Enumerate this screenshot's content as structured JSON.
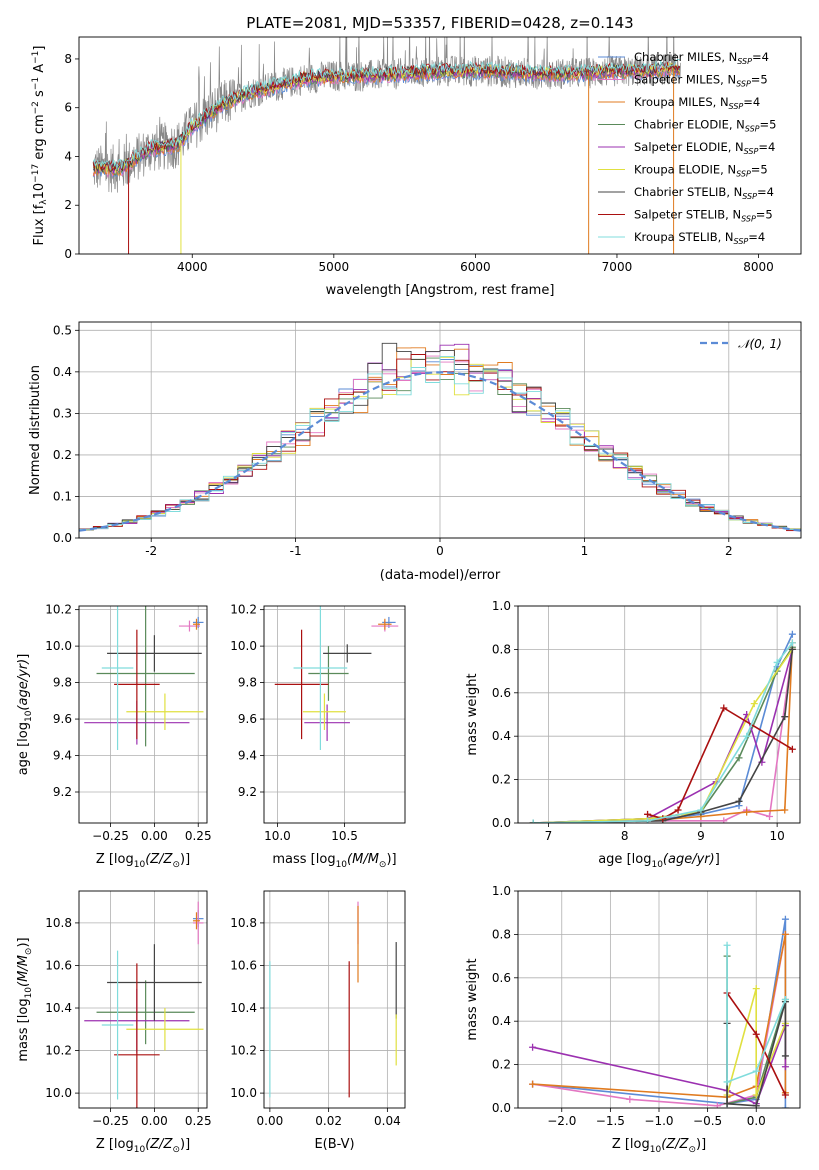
{
  "figure": {
    "title": "PLATE=2081, MJD=53357, FIBERID=0428, z=0.143"
  },
  "colors": {
    "Chabrier MILES": "#5b8bd6",
    "Salpeter MILES": "#e377c2",
    "Kroupa MILES": "#e07b20",
    "Chabrier ELODIE": "#5a8a5a",
    "Salpeter ELODIE": "#9b30b0",
    "Kroupa ELODIE": "#e0e040",
    "Chabrier STELIB": "#444444",
    "Salpeter STELIB": "#aa1010",
    "Kroupa STELIB": "#80dcdc",
    "gaussian": "#5b8bd6",
    "data": "#888888"
  },
  "chart_data": [
    {
      "id": "spectrum",
      "type": "line",
      "xlabel": "wavelength [Angstrom, rest frame]",
      "ylabel_parts": [
        "Flux [f",
        "λ",
        "10",
        "−17",
        " erg cm",
        "−2",
        " s",
        "−1",
        " A",
        "−1",
        "]"
      ],
      "xlim": [
        3200,
        8300
      ],
      "ylim": [
        0,
        8.9
      ],
      "xticks": [
        4000,
        5000,
        6000,
        7000,
        8000
      ],
      "yticks": [
        0,
        2,
        4,
        6,
        8
      ],
      "grid": false,
      "legend_position": "right",
      "legend": [
        {
          "model": "Chabrier MILES",
          "n": "4"
        },
        {
          "model": "Salpeter MILES",
          "n": "5"
        },
        {
          "model": "Kroupa MILES",
          "n": "4"
        },
        {
          "model": "Chabrier ELODIE",
          "n": "5"
        },
        {
          "model": "Salpeter ELODIE",
          "n": "4"
        },
        {
          "model": "Kroupa ELODIE",
          "n": "5"
        },
        {
          "model": "Chabrier STELIB",
          "n": "4"
        },
        {
          "model": "Salpeter STELIB",
          "n": "5"
        },
        {
          "model": "Kroupa STELIB",
          "n": "4"
        }
      ],
      "continuum": {
        "x": [
          3300,
          3500,
          3700,
          3900,
          4000,
          4200,
          4400,
          4600,
          4800,
          5000,
          5200,
          5500,
          5800,
          6100,
          6400,
          6700,
          7000,
          7200,
          7400
        ],
        "y": [
          3.5,
          3.5,
          4.3,
          4.5,
          5.2,
          6.1,
          6.6,
          6.9,
          7.2,
          7.3,
          7.3,
          7.4,
          7.5,
          7.5,
          7.4,
          7.4,
          7.5,
          7.5,
          7.6
        ]
      },
      "spikes_down": [
        3550,
        3920,
        6800,
        7400
      ]
    },
    {
      "id": "residuals",
      "type": "bar",
      "xlabel": "(data-model)/error",
      "ylabel": "Normed distribution",
      "xlim": [
        -2.5,
        2.5
      ],
      "ylim": [
        0,
        0.52
      ],
      "xticks": [
        -2,
        -1,
        0,
        1,
        2
      ],
      "yticks": [
        0.0,
        0.1,
        0.2,
        0.3,
        0.4,
        0.5
      ],
      "grid": true,
      "legend_position": "top-right",
      "legend_label": "𝒩(0, 1)",
      "bin_edges_start": -2.5,
      "bin_width": 0.1,
      "series_peak": [
        0.4,
        0.42,
        0.46,
        0.41,
        0.45,
        0.39,
        0.49,
        0.44,
        0.41
      ]
    },
    {
      "id": "age-vs-Z",
      "type": "scatter",
      "xlabel": "Z [log",
      "ylabel": "age  [log",
      "xlim": [
        -0.43,
        0.3
      ],
      "ylim": [
        9.03,
        10.22
      ],
      "xticks": [
        -0.25,
        0.0,
        0.25
      ],
      "xtick_labels": [
        "−0.25",
        "0.00",
        "0.25"
      ],
      "yticks": [
        9.2,
        9.4,
        9.6,
        9.8,
        10.0,
        10.2
      ],
      "grid": true,
      "points": [
        {
          "model": "Chabrier MILES",
          "x": 0.25,
          "y": 10.13,
          "xerr": 0.03,
          "yerr": 0.03
        },
        {
          "model": "Salpeter MILES",
          "x": 0.2,
          "y": 10.11,
          "xerr": 0.06,
          "yerr": 0.03
        },
        {
          "model": "Kroupa MILES",
          "x": 0.24,
          "y": 10.12,
          "xerr": 0.02,
          "yerr": 0.03
        },
        {
          "model": "Chabrier ELODIE",
          "x": -0.05,
          "y": 9.85,
          "xerr": 0.28,
          "yerr": 0.4
        },
        {
          "model": "Salpeter ELODIE",
          "x": -0.1,
          "y": 9.58,
          "xerr": 0.3,
          "yerr": 0.12
        },
        {
          "model": "Kroupa ELODIE",
          "x": 0.06,
          "y": 9.64,
          "xerr": 0.22,
          "yerr": 0.1
        },
        {
          "model": "Chabrier STELIB",
          "x": 0.0,
          "y": 9.96,
          "xerr": 0.27,
          "yerr": 0.1
        },
        {
          "model": "Salpeter STELIB",
          "x": -0.1,
          "y": 9.79,
          "xerr": 0.13,
          "yerr": 0.3
        },
        {
          "model": "Kroupa STELIB",
          "x": -0.21,
          "y": 9.88,
          "xerr": 0.09,
          "yerr": 0.45
        }
      ]
    },
    {
      "id": "age-vs-mass",
      "type": "scatter",
      "xlabel": "mass [log",
      "ylabel": "",
      "xlim": [
        9.9,
        10.95
      ],
      "ylim": [
        9.03,
        10.22
      ],
      "xticks": [
        10.0,
        10.5
      ],
      "xtick_labels": [
        "10.0",
        "10.5"
      ],
      "yticks": [
        9.2,
        9.4,
        9.6,
        9.8,
        10.0,
        10.2
      ],
      "grid": true,
      "points": [
        {
          "model": "Chabrier MILES",
          "x": 10.83,
          "y": 10.13,
          "xerr": 0.05,
          "yerr": 0.03
        },
        {
          "model": "Salpeter MILES",
          "x": 10.8,
          "y": 10.11,
          "xerr": 0.1,
          "yerr": 0.03
        },
        {
          "model": "Kroupa MILES",
          "x": 10.8,
          "y": 10.12,
          "xerr": 0.05,
          "yerr": 0.03
        },
        {
          "model": "Chabrier ELODIE",
          "x": 10.38,
          "y": 9.85,
          "xerr": 0.15,
          "yerr": 0.15
        },
        {
          "model": "Salpeter ELODIE",
          "x": 10.37,
          "y": 9.58,
          "xerr": 0.17,
          "yerr": 0.1
        },
        {
          "model": "Kroupa ELODIE",
          "x": 10.35,
          "y": 9.64,
          "xerr": 0.16,
          "yerr": 0.1
        },
        {
          "model": "Chabrier STELIB",
          "x": 10.52,
          "y": 9.96,
          "xerr": 0.18,
          "yerr": 0.05
        },
        {
          "model": "Salpeter STELIB",
          "x": 10.18,
          "y": 9.79,
          "xerr": 0.2,
          "yerr": 0.3
        },
        {
          "model": "Kroupa STELIB",
          "x": 10.32,
          "y": 9.88,
          "xerr": 0.2,
          "yerr": 0.45
        }
      ]
    },
    {
      "id": "mass-weight-vs-age",
      "type": "line",
      "xlabel": "age  [log",
      "ylabel": "mass weight",
      "xlim": [
        6.6,
        10.3
      ],
      "ylim": [
        0,
        1.0
      ],
      "xticks": [
        7,
        8,
        9,
        10
      ],
      "yticks": [
        0.0,
        0.2,
        0.4,
        0.6,
        0.8,
        1.0
      ],
      "grid": true,
      "series": [
        {
          "model": "Chabrier MILES",
          "x": [
            6.8,
            8.3,
            9.0,
            9.5,
            10.0,
            10.2
          ],
          "y": [
            0.0,
            0.01,
            0.04,
            0.08,
            0.72,
            0.87
          ]
        },
        {
          "model": "Salpeter MILES",
          "x": [
            6.8,
            8.3,
            9.3,
            9.6,
            9.9,
            10.2
          ],
          "y": [
            0.0,
            0.01,
            0.01,
            0.06,
            0.03,
            0.8
          ]
        },
        {
          "model": "Kroupa MILES",
          "x": [
            6.8,
            8.3,
            9.0,
            9.6,
            10.1,
            10.2
          ],
          "y": [
            0.0,
            0.01,
            0.03,
            0.05,
            0.06,
            0.83
          ]
        },
        {
          "model": "Chabrier ELODIE",
          "x": [
            6.8,
            8.3,
            9.0,
            9.5,
            10.0,
            10.2
          ],
          "y": [
            0.0,
            0.02,
            0.05,
            0.3,
            0.7,
            0.81
          ]
        },
        {
          "model": "Salpeter ELODIE",
          "x": [
            6.8,
            8.3,
            9.2,
            9.6,
            9.8,
            10.2
          ],
          "y": [
            0.0,
            0.02,
            0.19,
            0.5,
            0.28,
            0.8
          ]
        },
        {
          "model": "Kroupa ELODIE",
          "x": [
            6.8,
            8.3,
            9.0,
            9.7,
            10.2
          ],
          "y": [
            0.0,
            0.02,
            0.05,
            0.55,
            0.8
          ]
        },
        {
          "model": "Chabrier STELIB",
          "x": [
            6.8,
            8.5,
            9.0,
            9.5,
            10.1,
            10.2
          ],
          "y": [
            0.0,
            0.01,
            0.05,
            0.1,
            0.49,
            0.8
          ]
        },
        {
          "model": "Salpeter STELIB",
          "x": [
            8.3,
            8.5,
            8.7,
            9.3,
            10.2
          ],
          "y": [
            0.04,
            0.02,
            0.06,
            0.53,
            0.34
          ]
        },
        {
          "model": "Kroupa STELIB",
          "x": [
            6.8,
            8.3,
            9.0,
            9.6,
            10.0,
            10.2
          ],
          "y": [
            0.0,
            0.01,
            0.06,
            0.4,
            0.74,
            0.83
          ]
        }
      ]
    },
    {
      "id": "mass-vs-Z",
      "type": "scatter",
      "xlabel": "Z [log",
      "ylabel": "mass [log",
      "xlim": [
        -0.43,
        0.3
      ],
      "ylim": [
        9.93,
        10.95
      ],
      "xticks": [
        -0.25,
        0.0,
        0.25
      ],
      "xtick_labels": [
        "−0.25",
        "0.00",
        "0.25"
      ],
      "yticks": [
        10.0,
        10.2,
        10.4,
        10.6,
        10.8
      ],
      "grid": true,
      "points": [
        {
          "model": "Chabrier MILES",
          "x": 0.25,
          "y": 10.82,
          "xerr": 0.03,
          "yerr": 0.04
        },
        {
          "model": "Salpeter MILES",
          "x": 0.25,
          "y": 10.8,
          "xerr": 0.03,
          "yerr": 0.1
        },
        {
          "model": "Kroupa MILES",
          "x": 0.24,
          "y": 10.81,
          "xerr": 0.02,
          "yerr": 0.04
        },
        {
          "model": "Chabrier ELODIE",
          "x": -0.05,
          "y": 10.38,
          "xerr": 0.28,
          "yerr": 0.15
        },
        {
          "model": "Salpeter ELODIE",
          "x": -0.1,
          "y": 10.34,
          "xerr": 0.3,
          "yerr": 0.15
        },
        {
          "model": "Kroupa ELODIE",
          "x": 0.06,
          "y": 10.3,
          "xerr": 0.22,
          "yerr": 0.1
        },
        {
          "model": "Chabrier STELIB",
          "x": 0.0,
          "y": 10.52,
          "xerr": 0.27,
          "yerr": 0.18
        },
        {
          "model": "Salpeter STELIB",
          "x": -0.1,
          "y": 10.18,
          "xerr": 0.13,
          "yerr": 0.43
        },
        {
          "model": "Kroupa STELIB",
          "x": -0.21,
          "y": 10.32,
          "xerr": 0.09,
          "yerr": 0.35
        }
      ]
    },
    {
      "id": "mass-vs-EBV",
      "type": "scatter",
      "xlabel": "E(B-V)",
      "ylabel": "",
      "xlim": [
        -0.002,
        0.046
      ],
      "ylim": [
        9.93,
        10.95
      ],
      "xticks": [
        0.0,
        0.02,
        0.04
      ],
      "xtick_labels": [
        "0.00",
        "0.02",
        "0.04"
      ],
      "yticks": [
        10.0,
        10.2,
        10.4,
        10.6,
        10.8
      ],
      "grid": true,
      "points": [
        {
          "model": "Kroupa STELIB",
          "x": 0.0,
          "y": 10.3,
          "xerr": 0.0,
          "yerr": 0.32
        },
        {
          "model": "Salpeter STELIB",
          "x": 0.027,
          "y": 10.3,
          "xerr": 0.0,
          "yerr": 0.32
        },
        {
          "model": "Salpeter MILES",
          "x": 0.03,
          "y": 10.8,
          "xerr": 0.0,
          "yerr": 0.1
        },
        {
          "model": "Kroupa MILES",
          "x": 0.03,
          "y": 10.7,
          "xerr": 0.0,
          "yerr": 0.18
        },
        {
          "model": "Chabrier STELIB",
          "x": 0.043,
          "y": 10.53,
          "xerr": 0.0,
          "yerr": 0.18
        },
        {
          "model": "Kroupa ELODIE",
          "x": 0.043,
          "y": 10.25,
          "xerr": 0.0,
          "yerr": 0.12
        }
      ]
    },
    {
      "id": "mass-weight-vs-Z",
      "type": "line",
      "xlabel": "Z [log",
      "ylabel": "mass weight",
      "xlim": [
        -2.45,
        0.45
      ],
      "ylim": [
        0,
        1.0
      ],
      "xticks": [
        -2.0,
        -1.5,
        -1.0,
        -0.5,
        0.0
      ],
      "xtick_labels": [
        "−2.0",
        "−1.5",
        "−1.0",
        "−0.5",
        "0.0"
      ],
      "yticks": [
        0.0,
        0.2,
        0.4,
        0.6,
        0.8,
        1.0
      ],
      "grid": true,
      "series": [
        {
          "model": "Chabrier MILES",
          "x": [
            -2.3,
            -0.3,
            0.0,
            0.3,
            0.3
          ],
          "y": [
            0.11,
            0.02,
            0.04,
            0.87,
            0.0
          ]
        },
        {
          "model": "Salpeter MILES",
          "x": [
            -2.3,
            -1.3,
            -0.4,
            0.0,
            0.3
          ],
          "y": [
            0.11,
            0.04,
            0.01,
            0.06,
            0.8
          ]
        },
        {
          "model": "Kroupa MILES",
          "x": [
            -2.3,
            -0.3,
            0.0,
            0.3,
            0.3
          ],
          "y": [
            0.11,
            0.05,
            0.1,
            0.8,
            0.07
          ]
        },
        {
          "model": "Chabrier ELODIE",
          "x": [
            -0.3,
            -0.3,
            0.0,
            0.3
          ],
          "y": [
            0.7,
            0.02,
            0.05,
            0.5
          ]
        },
        {
          "model": "Salpeter ELODIE",
          "x": [
            -2.3,
            -0.3,
            0.0,
            0.3,
            0.3
          ],
          "y": [
            0.28,
            0.08,
            0.02,
            0.38,
            0.19
          ]
        },
        {
          "model": "Kroupa ELODIE",
          "x": [
            -0.3,
            0.0,
            0.0,
            0.3
          ],
          "y": [
            0.06,
            0.55,
            0.06,
            0.39
          ]
        },
        {
          "model": "Chabrier STELIB",
          "x": [
            -0.3,
            -0.3,
            0.0,
            0.3,
            0.3
          ],
          "y": [
            0.39,
            0.02,
            0.01,
            0.49,
            0.24
          ]
        },
        {
          "model": "Salpeter STELIB",
          "x": [
            -0.3,
            0.0,
            0.3
          ],
          "y": [
            0.53,
            0.34,
            0.06
          ]
        },
        {
          "model": "Kroupa STELIB",
          "x": [
            -0.3,
            -0.3,
            0.0,
            0.3
          ],
          "y": [
            0.75,
            0.12,
            0.17,
            0.5
          ]
        }
      ]
    }
  ],
  "labels": {
    "zsun_suffix": "(Z/Z",
    "msun_suffix": "(M/M",
    "age_suffix": "(age/yr)",
    "sun": "⊙",
    "sub10": "10",
    "ssp": "SSP",
    "n_prefix": "N"
  }
}
